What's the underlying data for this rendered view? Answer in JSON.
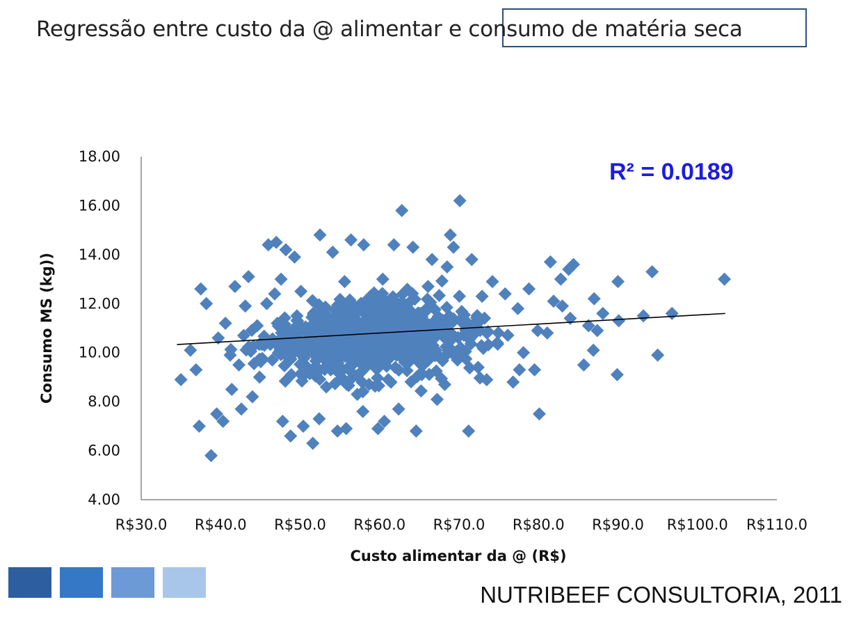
{
  "slide": {
    "title": "Regressão entre custo da @ alimentar e consumo de matéria seca",
    "credit": "NUTRIBEEF CONSULTORIA, 2011",
    "square_colors": [
      "#2d5fa0",
      "#3578c6",
      "#6c9ad6",
      "#a8c6ea"
    ]
  },
  "chart_data": {
    "type": "scatter",
    "xlabel": "Custo alimentar da @ (R$)",
    "ylabel": "Consumo MS (kg))",
    "annotation": "R² = 0.0189",
    "xlim": [
      30,
      110
    ],
    "ylim": [
      4,
      18
    ],
    "x_ticks": [
      "R$30.0",
      "R$40.0",
      "R$50.0",
      "R$60.0",
      "R$70.0",
      "R$80.0",
      "R$90.0",
      "R$100.0",
      "R$110.0"
    ],
    "y_ticks": [
      "4.00",
      "6.00",
      "8.00",
      "10.00",
      "12.00",
      "14.00",
      "16.00",
      "18.00"
    ],
    "grid": false,
    "marker_color": "#4f81bd",
    "trendline": {
      "x": [
        34.5,
        103.5
      ],
      "y": [
        10.33,
        11.6
      ]
    },
    "series": [
      {
        "values": [
          [
            38.8,
            5.8
          ],
          [
            37.3,
            7.0
          ],
          [
            35.0,
            8.9
          ],
          [
            36.9,
            9.3
          ],
          [
            36.2,
            10.1
          ],
          [
            37.5,
            12.6
          ],
          [
            38.2,
            12.0
          ],
          [
            39.5,
            7.5
          ],
          [
            40.3,
            7.2
          ],
          [
            41.4,
            8.5
          ],
          [
            42.3,
            9.5
          ],
          [
            39.7,
            10.6
          ],
          [
            40.6,
            11.2
          ],
          [
            41.8,
            12.7
          ],
          [
            43.5,
            13.1
          ],
          [
            42.6,
            7.7
          ],
          [
            44.0,
            8.2
          ],
          [
            44.9,
            9.0
          ],
          [
            45.5,
            10.3
          ],
          [
            43.1,
            11.9
          ],
          [
            46.0,
            14.4
          ],
          [
            47.0,
            14.5
          ],
          [
            48.2,
            14.2
          ],
          [
            49.3,
            13.9
          ],
          [
            47.6,
            13.0
          ],
          [
            46.8,
            12.4
          ],
          [
            47.8,
            7.2
          ],
          [
            48.8,
            6.6
          ],
          [
            50.4,
            7.0
          ],
          [
            51.6,
            6.3
          ],
          [
            52.4,
            7.3
          ],
          [
            52.5,
            14.8
          ],
          [
            54.7,
            6.8
          ],
          [
            55.8,
            6.9
          ],
          [
            54.1,
            14.1
          ],
          [
            56.4,
            14.6
          ],
          [
            58.0,
            14.4
          ],
          [
            57.9,
            7.6
          ],
          [
            59.8,
            6.9
          ],
          [
            60.6,
            7.2
          ],
          [
            62.4,
            7.7
          ],
          [
            62.8,
            15.8
          ],
          [
            64.6,
            6.8
          ],
          [
            61.8,
            14.4
          ],
          [
            64.2,
            14.3
          ],
          [
            66.6,
            13.8
          ],
          [
            68.5,
            13.5
          ],
          [
            68.9,
            14.8
          ],
          [
            69.3,
            14.3
          ],
          [
            70.1,
            16.2
          ],
          [
            71.2,
            6.8
          ],
          [
            71.6,
            13.8
          ],
          [
            74.2,
            12.9
          ],
          [
            75.8,
            12.4
          ],
          [
            76.8,
            8.8
          ],
          [
            77.6,
            9.3
          ],
          [
            78.8,
            12.6
          ],
          [
            79.5,
            9.3
          ],
          [
            80.1,
            7.5
          ],
          [
            81.1,
            10.8
          ],
          [
            81.5,
            13.7
          ],
          [
            81.9,
            12.1
          ],
          [
            82.8,
            13.0
          ],
          [
            83.8,
            13.4
          ],
          [
            84.4,
            13.6
          ],
          [
            84.0,
            11.4
          ],
          [
            85.7,
            9.5
          ],
          [
            86.3,
            11.1
          ],
          [
            87.0,
            12.2
          ],
          [
            87.4,
            10.9
          ],
          [
            86.9,
            10.1
          ],
          [
            90.0,
            12.9
          ],
          [
            89.9,
            9.1
          ],
          [
            90.1,
            11.3
          ],
          [
            93.2,
            11.5
          ],
          [
            94.3,
            13.3
          ],
          [
            95.0,
            9.9
          ],
          [
            96.8,
            11.6
          ],
          [
            103.4,
            13.0
          ],
          [
            44.6,
            11.1
          ],
          [
            48.9,
            9.1
          ],
          [
            53.3,
            8.6
          ],
          [
            57.2,
            8.3
          ],
          [
            61.1,
            8.9
          ],
          [
            65.3,
            9.1
          ],
          [
            68.2,
            8.7
          ],
          [
            72.4,
            9.4
          ],
          [
            45.8,
            12.0
          ],
          [
            50.1,
            12.5
          ],
          [
            55.6,
            12.9
          ],
          [
            60.4,
            13.0
          ],
          [
            66.1,
            12.7
          ],
          [
            72.9,
            12.3
          ],
          [
            77.4,
            11.8
          ],
          [
            79.9,
            10.9
          ],
          [
            83.0,
            11.9
          ],
          [
            88.1,
            11.6
          ],
          [
            74.8,
            10.4
          ],
          [
            78.1,
            10.0
          ],
          [
            73.5,
            10.8
          ],
          [
            69.8,
            9.7
          ],
          [
            64.8,
            11.4
          ],
          [
            59.2,
            10.5
          ],
          [
            52.9,
            10.8
          ],
          [
            49.6,
            11.5
          ],
          [
            46.5,
            9.7
          ],
          [
            43.7,
            10.2
          ],
          [
            41.2,
            9.9
          ],
          [
            42.9,
            10.7
          ]
        ]
      }
    ]
  }
}
